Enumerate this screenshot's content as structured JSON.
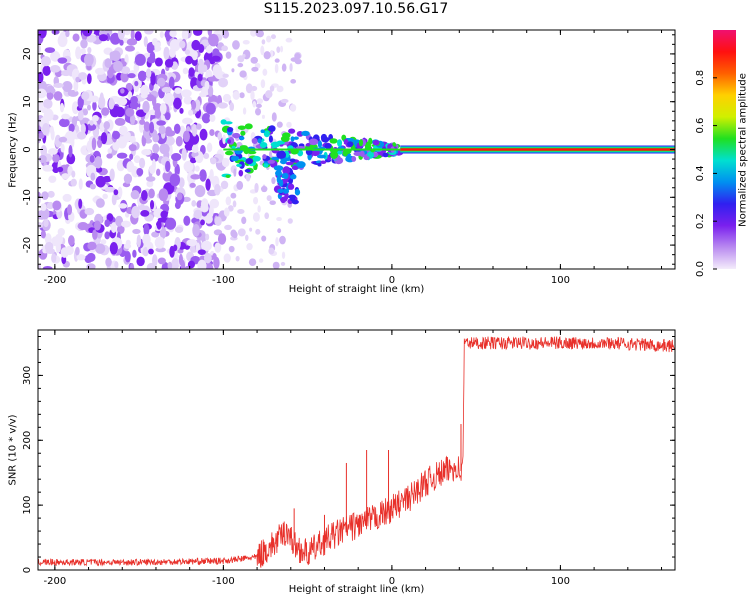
{
  "title": "S115.2023.097.10.56.G17",
  "chart_data": [
    {
      "type": "heatmap",
      "xlabel": "Height of straight line (km)",
      "ylabel": "Frequency (Hz)",
      "xlim": [
        -210,
        168
      ],
      "ylim": [
        -25,
        25
      ],
      "x_ticks": [
        -200,
        -100,
        0,
        100
      ],
      "y_ticks": [
        -20,
        -10,
        0,
        10,
        20
      ],
      "colorbar": {
        "label": "Normalized spectral amplitude",
        "range": [
          0,
          1
        ],
        "ticks": [
          "0.0",
          "0.2",
          "0.4",
          "0.6",
          "0.8"
        ],
        "colors": [
          "#f4ecfb",
          "#b98af0",
          "#7a20ee",
          "#3020f0",
          "#0090f0",
          "#00e0d0",
          "#20e020",
          "#d0f000",
          "#ffd000",
          "#ff6000",
          "#ff1010",
          "#f01070"
        ]
      },
      "features": {
        "noise_region_x": [
          -210,
          -100
        ],
        "sparse_region_x": [
          -100,
          -55
        ],
        "tone_x_start": -100,
        "tone_frequency": 0
      }
    },
    {
      "type": "line",
      "xlabel": "Height of straight line (km)",
      "ylabel": "SNR (10 * v/v)",
      "xlim": [
        -210,
        168
      ],
      "ylim": [
        0,
        370
      ],
      "x_ticks": [
        -200,
        -100,
        0,
        100
      ],
      "y_ticks": [
        0,
        100,
        200,
        300
      ],
      "color": "#e8302a",
      "series": [
        {
          "points": [
            [
              -210,
              12
            ],
            [
              -150,
              12
            ],
            [
              -100,
              14
            ],
            [
              -80,
              20
            ],
            [
              -70,
              40
            ],
            [
              -62,
              62
            ],
            [
              -58,
              38
            ],
            [
              -50,
              25
            ],
            [
              -40,
              45
            ],
            [
              -30,
              60
            ],
            [
              -20,
              70
            ],
            [
              -10,
              80
            ],
            [
              0,
              95
            ],
            [
              10,
              110
            ],
            [
              20,
              135
            ],
            [
              30,
              150
            ],
            [
              38,
              160
            ],
            [
              42,
              150
            ],
            [
              43,
              350
            ],
            [
              60,
              350
            ],
            [
              100,
              350
            ],
            [
              130,
              350
            ],
            [
              168,
              345
            ]
          ],
          "spikes": [
            [
              -58,
              95
            ],
            [
              -40,
              85
            ],
            [
              -27,
              165
            ],
            [
              -15,
              185
            ],
            [
              -2,
              185
            ],
            [
              41,
              225
            ]
          ]
        }
      ]
    }
  ]
}
